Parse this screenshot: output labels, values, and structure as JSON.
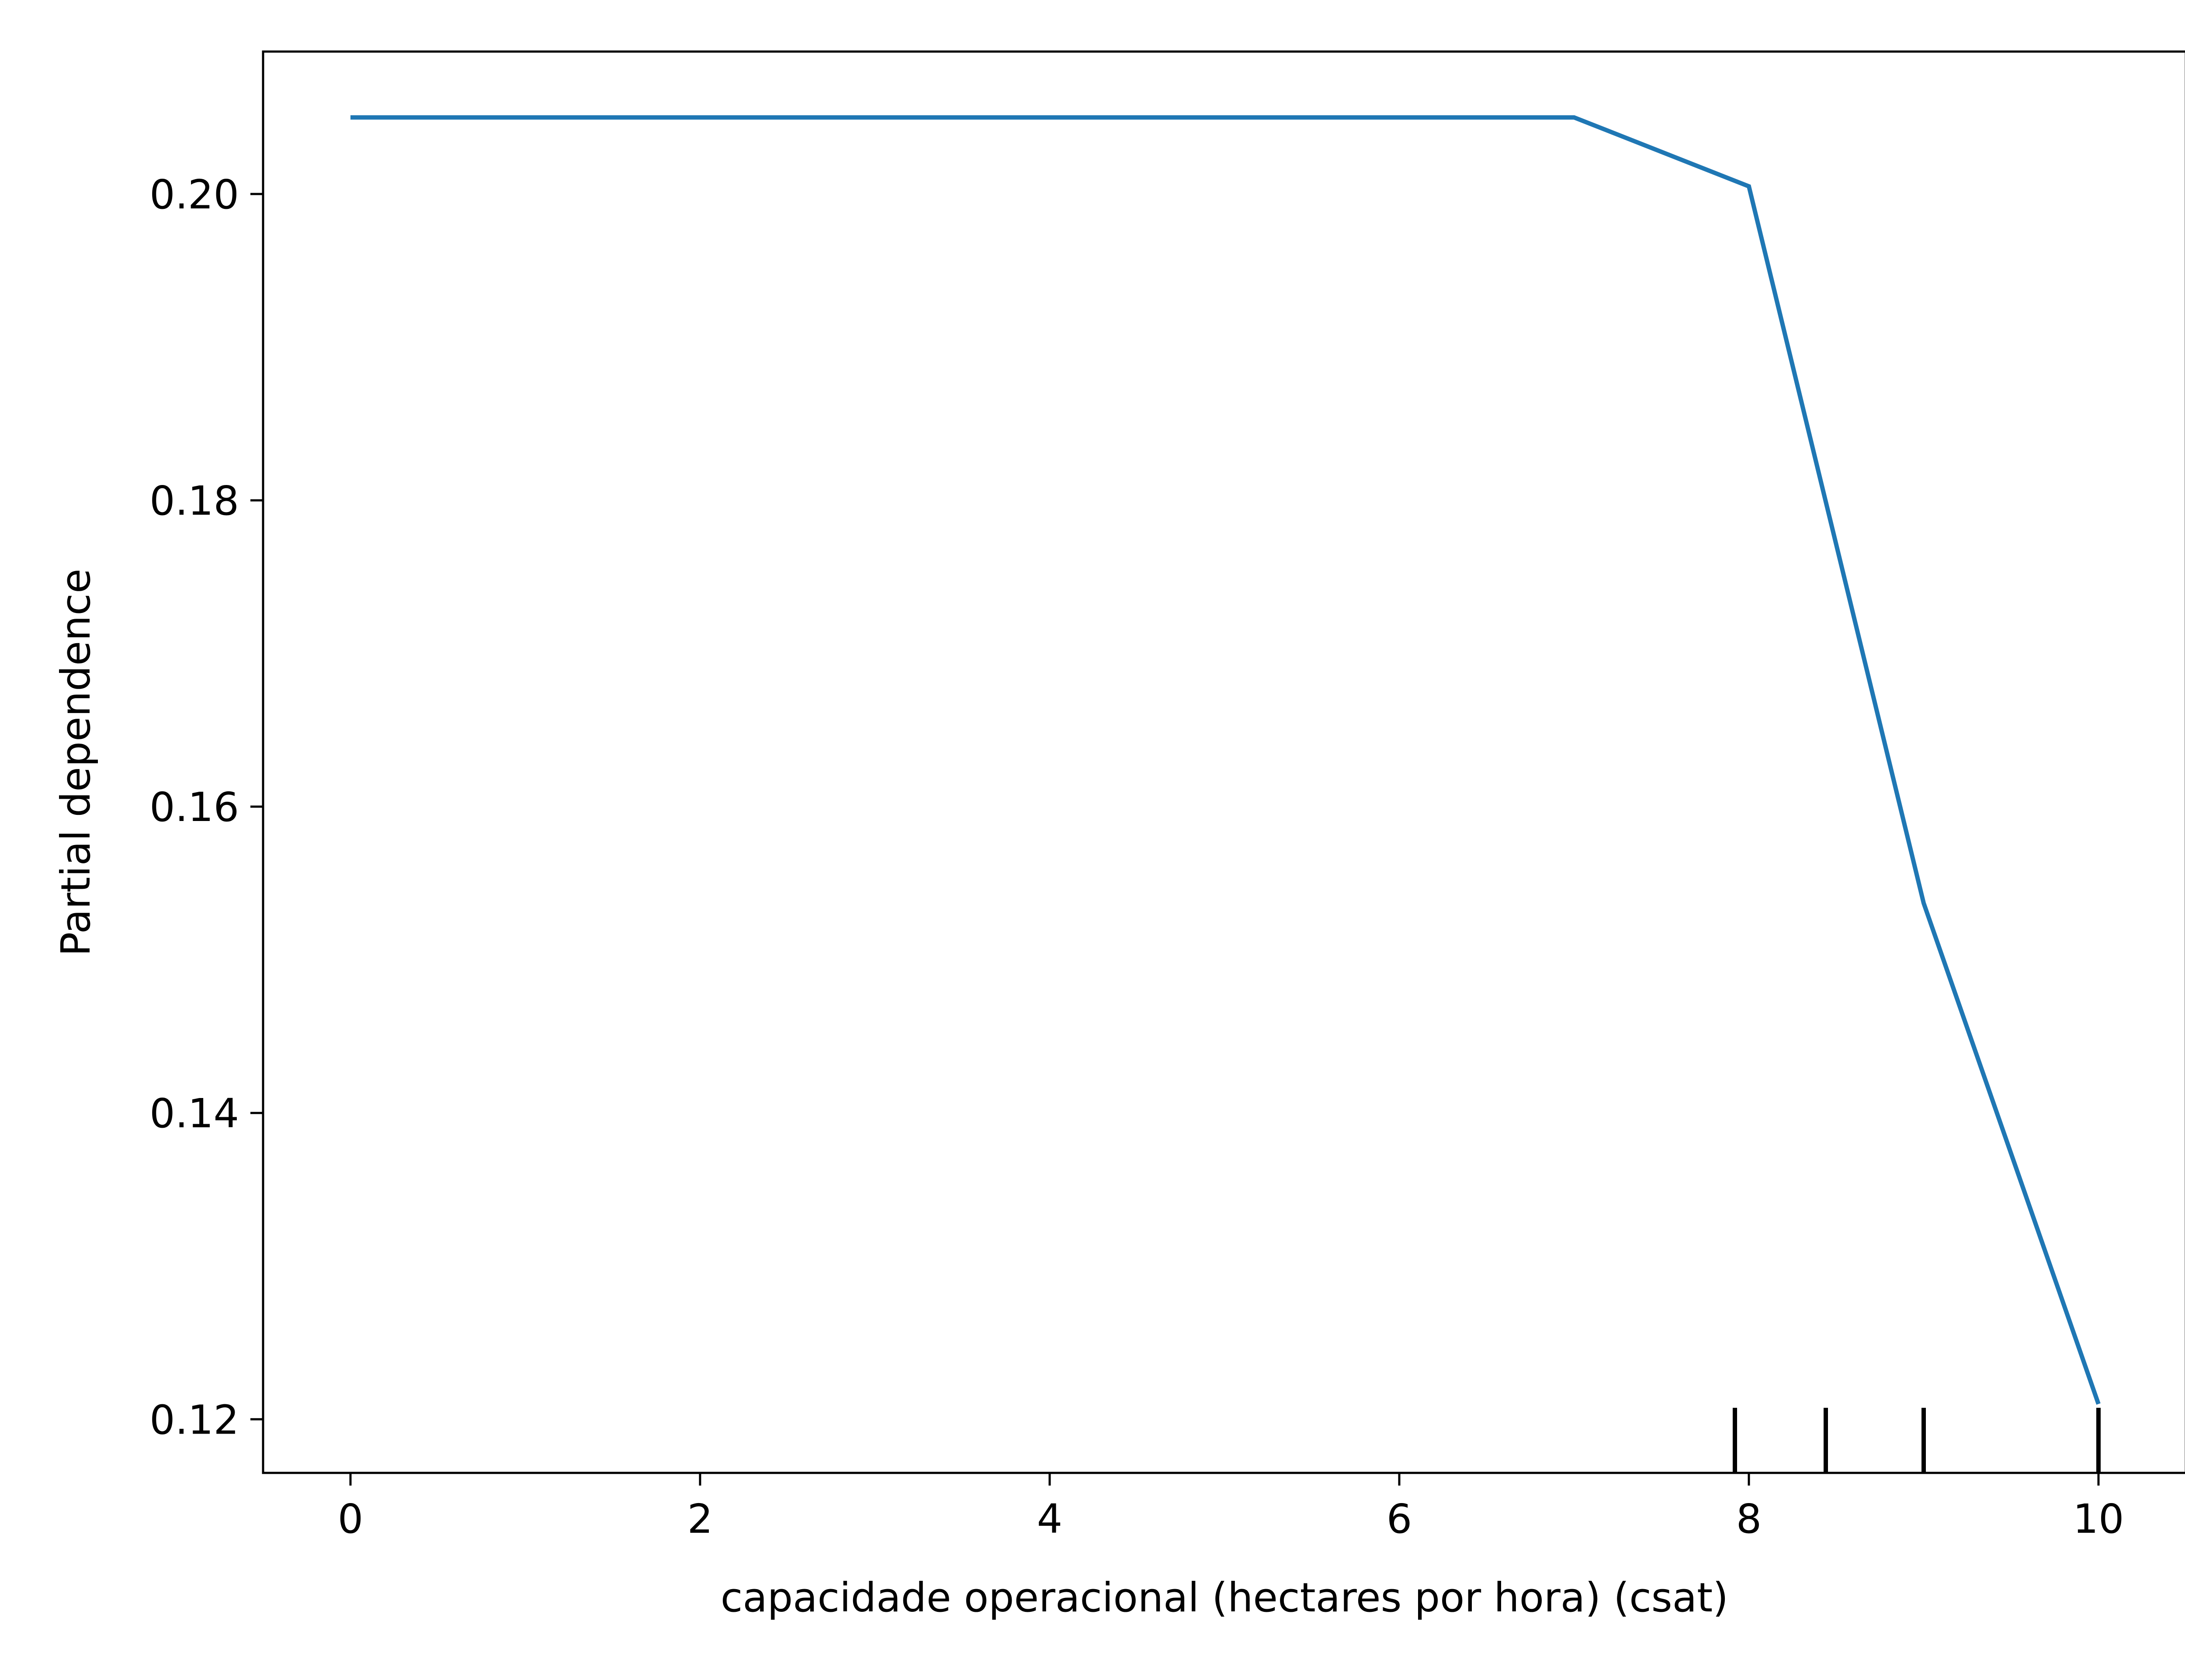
{
  "chart_data": {
    "type": "line",
    "title": "",
    "xlabel": "capacidade operacional (hectares por hora) (csat)",
    "ylabel": "Partial dependence",
    "xlim": [
      -0.5,
      10.5
    ],
    "ylim": [
      0.1165,
      0.2093
    ],
    "xticks": [
      0,
      2,
      4,
      6,
      8,
      10
    ],
    "xtick_labels": [
      "0",
      "2",
      "4",
      "6",
      "8",
      "10"
    ],
    "yticks": [
      0.12,
      0.14,
      0.16,
      0.18,
      0.2
    ],
    "ytick_labels": [
      "0.12",
      "0.14",
      "0.16",
      "0.18",
      "0.20"
    ],
    "grid": false,
    "legend": "none",
    "series": [
      {
        "color": "#1f77b4",
        "x": [
          0,
          7,
          8,
          9,
          10
        ],
        "y": [
          0.205,
          0.205,
          0.2005,
          0.1537,
          0.121
        ]
      }
    ],
    "rug": {
      "color": "#000000",
      "x": [
        7.92,
        8.44,
        9.0,
        10.0
      ]
    }
  }
}
